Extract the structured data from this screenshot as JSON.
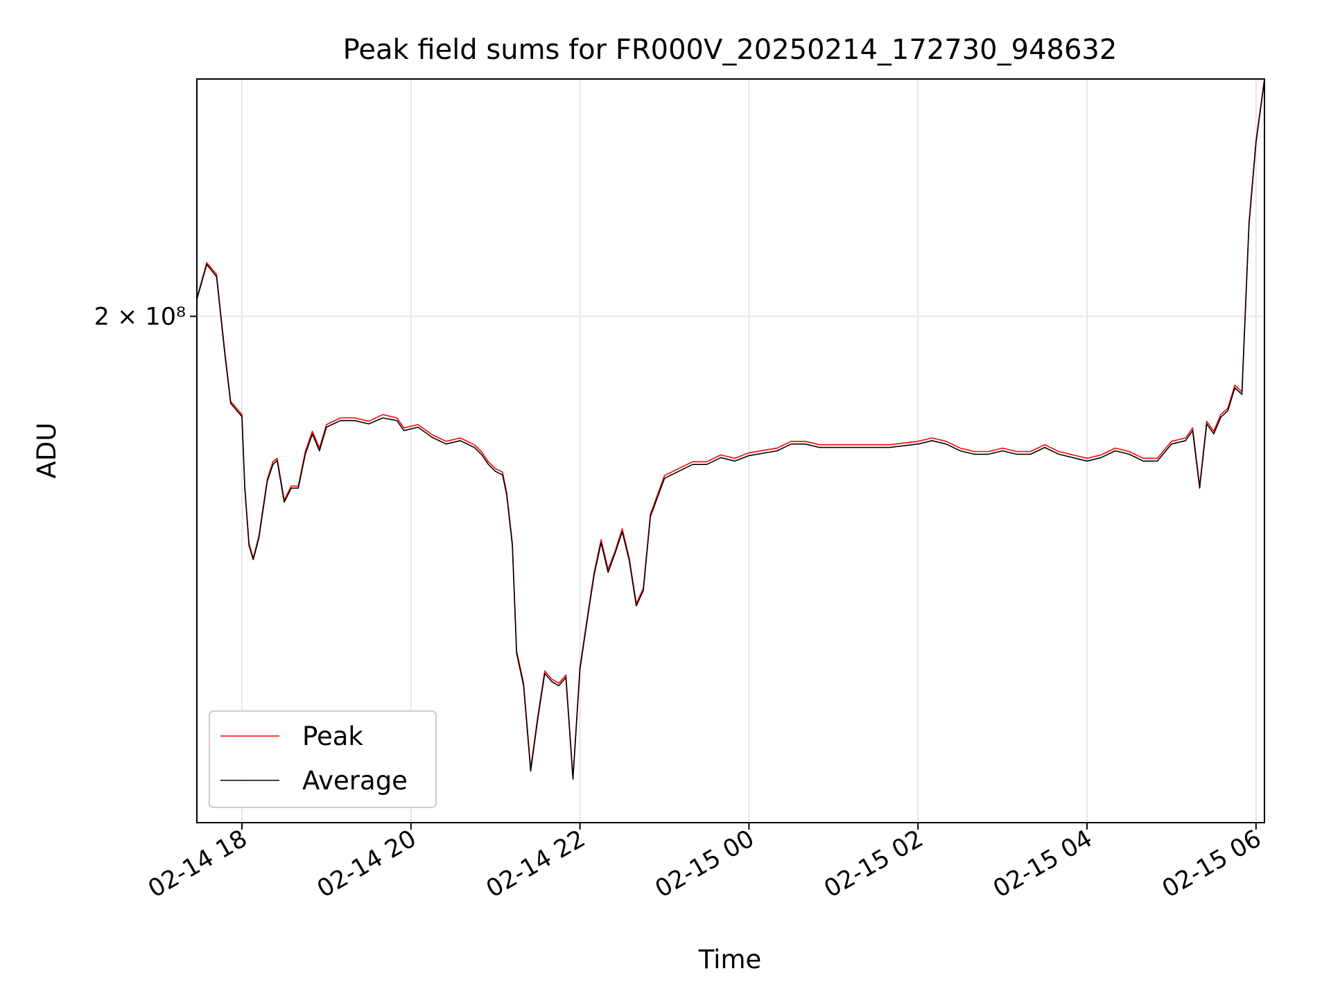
{
  "chart_data": {
    "type": "line",
    "title": "Peak field sums for FR000V_20250214_172730_948632",
    "xlabel": "Time",
    "ylabel": "ADU",
    "x_ticks": [
      "02-14 18",
      "02-14 20",
      "02-14 22",
      "02-15 00",
      "02-15 02",
      "02-15 04",
      "02-15 06"
    ],
    "y_ticks": [
      {
        "value": 200000000,
        "label": "2 × 10⁸"
      }
    ],
    "y_scale": "log",
    "ylim": [
      132000000,
      243000000
    ],
    "xlim": [
      "2025-02-14 17:28",
      "2025-02-15 06:06"
    ],
    "grid": true,
    "legend_position": "lower-left",
    "colors": {
      "peak": "#ff0000",
      "average": "#000000",
      "grid": "#e6e6e6"
    },
    "series": [
      {
        "name": "Peak",
        "x": [
          "2025-02-14 17:28",
          "2025-02-14 17:35",
          "2025-02-14 17:42",
          "2025-02-14 17:48",
          "2025-02-14 17:52",
          "2025-02-14 17:56",
          "2025-02-14 18:00",
          "2025-02-14 18:02",
          "2025-02-14 18:05",
          "2025-02-14 18:08",
          "2025-02-14 18:12",
          "2025-02-14 18:18",
          "2025-02-14 18:22",
          "2025-02-14 18:25",
          "2025-02-14 18:30",
          "2025-02-14 18:35",
          "2025-02-14 18:40",
          "2025-02-14 18:45",
          "2025-02-14 18:50",
          "2025-02-14 18:55",
          "2025-02-14 19:00",
          "2025-02-14 19:10",
          "2025-02-14 19:20",
          "2025-02-14 19:30",
          "2025-02-14 19:40",
          "2025-02-14 19:50",
          "2025-02-14 19:55",
          "2025-02-14 20:05",
          "2025-02-14 20:15",
          "2025-02-14 20:25",
          "2025-02-14 20:35",
          "2025-02-14 20:45",
          "2025-02-14 20:50",
          "2025-02-14 20:55",
          "2025-02-14 21:00",
          "2025-02-14 21:05",
          "2025-02-14 21:08",
          "2025-02-14 21:12",
          "2025-02-14 21:15",
          "2025-02-14 21:20",
          "2025-02-14 21:25",
          "2025-02-14 21:30",
          "2025-02-14 21:35",
          "2025-02-14 21:40",
          "2025-02-14 21:45",
          "2025-02-14 21:50",
          "2025-02-14 21:55",
          "2025-02-14 22:00",
          "2025-02-14 22:05",
          "2025-02-14 22:10",
          "2025-02-14 22:15",
          "2025-02-14 22:20",
          "2025-02-14 22:25",
          "2025-02-14 22:30",
          "2025-02-14 22:35",
          "2025-02-14 22:40",
          "2025-02-14 22:45",
          "2025-02-14 22:50",
          "2025-02-14 23:00",
          "2025-02-14 23:10",
          "2025-02-14 23:20",
          "2025-02-14 23:30",
          "2025-02-14 23:40",
          "2025-02-14 23:50",
          "2025-02-15 00:00",
          "2025-02-15 00:20",
          "2025-02-15 00:30",
          "2025-02-15 00:40",
          "2025-02-15 00:50",
          "2025-02-15 01:00",
          "2025-02-15 01:20",
          "2025-02-15 01:40",
          "2025-02-15 02:00",
          "2025-02-15 02:10",
          "2025-02-15 02:20",
          "2025-02-15 02:30",
          "2025-02-15 02:40",
          "2025-02-15 02:50",
          "2025-02-15 03:00",
          "2025-02-15 03:10",
          "2025-02-15 03:20",
          "2025-02-15 03:30",
          "2025-02-15 03:40",
          "2025-02-15 03:50",
          "2025-02-15 04:00",
          "2025-02-15 04:10",
          "2025-02-15 04:20",
          "2025-02-15 04:30",
          "2025-02-15 04:40",
          "2025-02-15 04:50",
          "2025-02-15 05:00",
          "2025-02-15 05:10",
          "2025-02-15 05:15",
          "2025-02-15 05:20",
          "2025-02-15 05:25",
          "2025-02-15 05:30",
          "2025-02-15 05:35",
          "2025-02-15 05:40",
          "2025-02-15 05:45",
          "2025-02-15 05:50",
          "2025-02-15 05:55",
          "2025-02-15 06:00",
          "2025-02-15 06:06"
        ],
        "y": [
          203000000,
          209000000,
          207000000,
          194000000,
          186500000,
          185500000,
          184500000,
          174000000,
          166000000,
          164000000,
          167000000,
          175000000,
          177500000,
          178000000,
          172000000,
          174000000,
          174000000,
          179000000,
          182000000,
          179500000,
          183000000,
          184000000,
          184000000,
          183500000,
          184500000,
          184000000,
          182500000,
          183000000,
          181500000,
          180500000,
          181000000,
          180000000,
          179000000,
          177500000,
          176500000,
          176000000,
          173000000,
          166000000,
          152000000,
          148000000,
          138000000,
          144000000,
          149500000,
          148500000,
          148000000,
          149000000,
          137000000,
          150000000,
          156000000,
          162000000,
          166500000,
          162500000,
          165000000,
          168000000,
          164000000,
          158000000,
          160000000,
          170000000,
          175500000,
          176500000,
          177500000,
          177500000,
          178500000,
          178000000,
          178800000,
          179500000,
          180500000,
          180500000,
          180000000,
          180000000,
          180000000,
          180000000,
          180500000,
          181000000,
          180500000,
          179500000,
          179000000,
          179000000,
          179500000,
          179000000,
          179000000,
          180000000,
          179000000,
          178500000,
          178000000,
          178500000,
          179500000,
          179000000,
          178000000,
          178000000,
          180500000,
          181000000,
          182500000,
          174000000,
          183500000,
          182000000,
          184500000,
          185500000,
          189000000,
          188000000,
          216000000,
          231000000,
          243000000
        ]
      },
      {
        "name": "Average",
        "x": [
          "2025-02-14 17:28",
          "2025-02-14 17:35",
          "2025-02-14 17:42",
          "2025-02-14 17:48",
          "2025-02-14 17:52",
          "2025-02-14 17:56",
          "2025-02-14 18:00",
          "2025-02-14 18:02",
          "2025-02-14 18:05",
          "2025-02-14 18:08",
          "2025-02-14 18:12",
          "2025-02-14 18:18",
          "2025-02-14 18:22",
          "2025-02-14 18:25",
          "2025-02-14 18:30",
          "2025-02-14 18:35",
          "2025-02-14 18:40",
          "2025-02-14 18:45",
          "2025-02-14 18:50",
          "2025-02-14 18:55",
          "2025-02-14 19:00",
          "2025-02-14 19:10",
          "2025-02-14 19:20",
          "2025-02-14 19:30",
          "2025-02-14 19:40",
          "2025-02-14 19:50",
          "2025-02-14 19:55",
          "2025-02-14 20:05",
          "2025-02-14 20:15",
          "2025-02-14 20:25",
          "2025-02-14 20:35",
          "2025-02-14 20:45",
          "2025-02-14 20:50",
          "2025-02-14 20:55",
          "2025-02-14 21:00",
          "2025-02-14 21:05",
          "2025-02-14 21:08",
          "2025-02-14 21:12",
          "2025-02-14 21:15",
          "2025-02-14 21:20",
          "2025-02-14 21:25",
          "2025-02-14 21:30",
          "2025-02-14 21:35",
          "2025-02-14 21:40",
          "2025-02-14 21:45",
          "2025-02-14 21:50",
          "2025-02-14 21:55",
          "2025-02-14 22:00",
          "2025-02-14 22:05",
          "2025-02-14 22:10",
          "2025-02-14 22:15",
          "2025-02-14 22:20",
          "2025-02-14 22:25",
          "2025-02-14 22:30",
          "2025-02-14 22:35",
          "2025-02-14 22:40",
          "2025-02-14 22:45",
          "2025-02-14 22:50",
          "2025-02-14 23:00",
          "2025-02-14 23:10",
          "2025-02-14 23:20",
          "2025-02-14 23:30",
          "2025-02-14 23:40",
          "2025-02-14 23:50",
          "2025-02-15 00:00",
          "2025-02-15 00:20",
          "2025-02-15 00:30",
          "2025-02-15 00:40",
          "2025-02-15 00:50",
          "2025-02-15 01:00",
          "2025-02-15 01:20",
          "2025-02-15 01:40",
          "2025-02-15 02:00",
          "2025-02-15 02:10",
          "2025-02-15 02:20",
          "2025-02-15 02:30",
          "2025-02-15 02:40",
          "2025-02-15 02:50",
          "2025-02-15 03:00",
          "2025-02-15 03:10",
          "2025-02-15 03:20",
          "2025-02-15 03:30",
          "2025-02-15 03:40",
          "2025-02-15 03:50",
          "2025-02-15 04:00",
          "2025-02-15 04:10",
          "2025-02-15 04:20",
          "2025-02-15 04:30",
          "2025-02-15 04:40",
          "2025-02-15 04:50",
          "2025-02-15 05:00",
          "2025-02-15 05:10",
          "2025-02-15 05:15",
          "2025-02-15 05:20",
          "2025-02-15 05:25",
          "2025-02-15 05:30",
          "2025-02-15 05:35",
          "2025-02-15 05:40",
          "2025-02-15 05:45",
          "2025-02-15 05:50",
          "2025-02-15 05:55",
          "2025-02-15 06:00",
          "2025-02-15 06:06"
        ],
        "y": [
          202800000,
          208700000,
          206600000,
          193600000,
          186200000,
          185200000,
          184200000,
          173700000,
          165700000,
          163800000,
          166700000,
          174700000,
          177100000,
          177700000,
          171700000,
          173700000,
          173700000,
          178600000,
          181600000,
          179100000,
          182600000,
          183600000,
          183600000,
          183100000,
          184000000,
          183600000,
          182100000,
          182600000,
          181100000,
          180100000,
          180600000,
          179600000,
          178600000,
          177100000,
          176100000,
          175600000,
          172700000,
          165700000,
          151700000,
          147700000,
          137700000,
          143700000,
          149200000,
          148200000,
          147700000,
          148700000,
          136800000,
          149700000,
          155700000,
          161700000,
          166100000,
          162100000,
          164700000,
          167600000,
          163700000,
          157700000,
          159700000,
          169700000,
          175100000,
          176100000,
          177100000,
          177100000,
          178100000,
          177600000,
          178400000,
          179100000,
          180100000,
          180100000,
          179600000,
          179600000,
          179600000,
          179600000,
          180100000,
          180600000,
          180100000,
          179100000,
          178600000,
          178600000,
          179100000,
          178600000,
          178600000,
          179600000,
          178600000,
          178100000,
          177600000,
          178100000,
          179100000,
          178600000,
          177600000,
          177600000,
          180100000,
          180600000,
          182100000,
          173700000,
          183100000,
          181600000,
          184100000,
          185100000,
          188600000,
          187600000,
          215600000,
          230600000,
          242800000
        ]
      }
    ]
  }
}
